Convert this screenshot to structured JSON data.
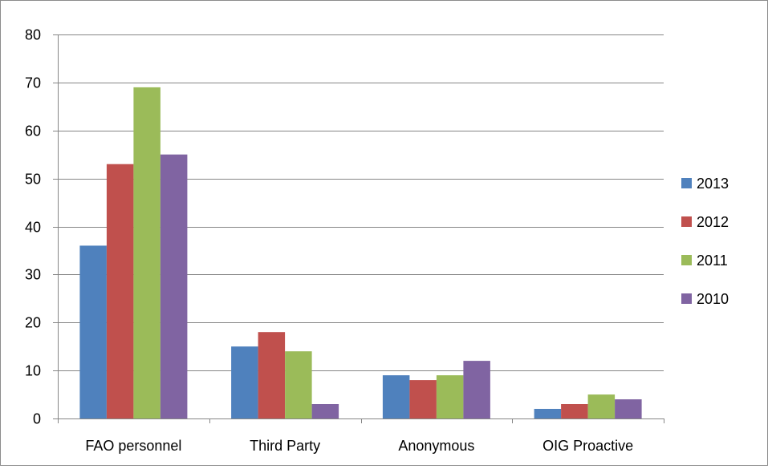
{
  "chart_data": {
    "type": "bar",
    "title": "",
    "xlabel": "",
    "ylabel": "",
    "ylim": [
      0,
      80
    ],
    "yticks": [
      0,
      10,
      20,
      30,
      40,
      50,
      60,
      70,
      80
    ],
    "grid": true,
    "legend_position": "right",
    "categories": [
      "FAO personnel",
      "Third Party",
      "Anonymous",
      "OIG Proactive"
    ],
    "series": [
      {
        "name": "2013",
        "color": "#4f81bd",
        "values": [
          36,
          15,
          9,
          2
        ]
      },
      {
        "name": "2012",
        "color": "#c0504d",
        "values": [
          53,
          18,
          8,
          3
        ]
      },
      {
        "name": "2011",
        "color": "#9bbb59",
        "values": [
          69,
          14,
          9,
          5
        ]
      },
      {
        "name": "2010",
        "color": "#8064a2",
        "values": [
          55,
          3,
          12,
          4
        ]
      }
    ]
  }
}
